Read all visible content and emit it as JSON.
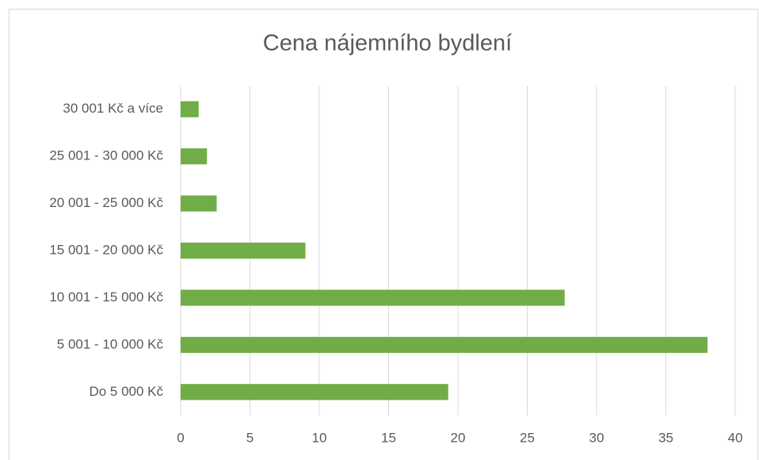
{
  "chart_data": {
    "type": "bar",
    "orientation": "horizontal",
    "title": "Cena nájemního bydlení",
    "categories": [
      "Do 5 000 Kč",
      "5 001 - 10 000 Kč",
      "10 001 - 15 000 Kč",
      "15 001 - 20 000 Kč",
      "20 001 - 25 000 Kč",
      "25 001 - 30 000 Kč",
      "30 001 Kč a více"
    ],
    "values": [
      19.3,
      38.0,
      27.7,
      9.0,
      2.6,
      1.9,
      1.3
    ],
    "color": "#70ad47",
    "xlim": [
      0,
      40
    ],
    "xticks": [
      0,
      5,
      10,
      15,
      20,
      25,
      30,
      35,
      40
    ],
    "grid": true
  }
}
